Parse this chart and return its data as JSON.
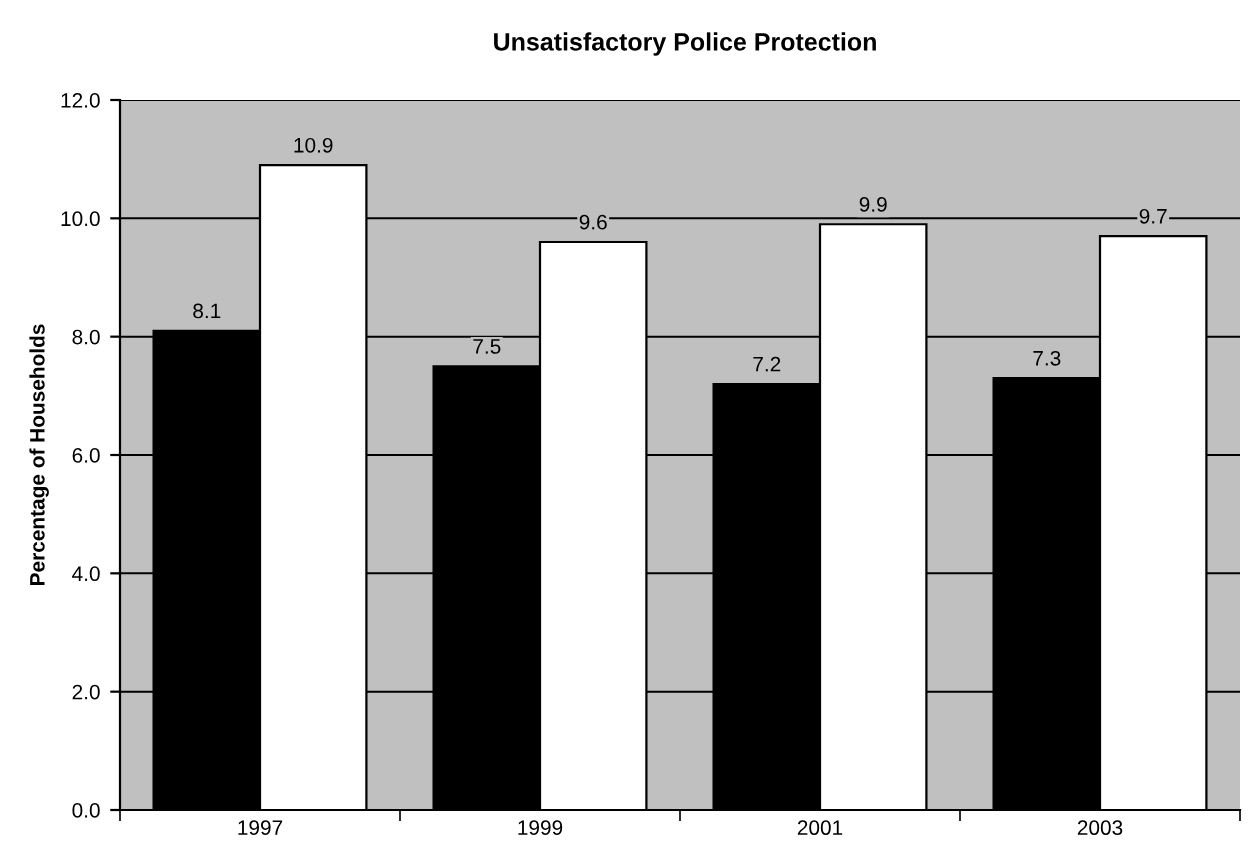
{
  "chart_data": {
    "type": "bar",
    "title": "Unsatisfactory Police Protection",
    "ylabel": "Percentage of Households",
    "categories": [
      "1997",
      "1999",
      "2001",
      "2003"
    ],
    "series": [
      {
        "color": "#000000",
        "values": [
          8.1,
          7.5,
          7.2,
          7.3
        ]
      },
      {
        "color": "#ffffff",
        "values": [
          10.9,
          9.6,
          9.9,
          9.7
        ]
      }
    ],
    "ylim": [
      0,
      12
    ],
    "yticks": [
      {
        "value": 0,
        "label": "0.0"
      },
      {
        "value": 2,
        "label": "2.0"
      },
      {
        "value": 4,
        "label": "4.0"
      },
      {
        "value": 6,
        "label": "6.0"
      },
      {
        "value": 8,
        "label": "8.0"
      },
      {
        "value": 10,
        "label": "10.0"
      },
      {
        "value": 12,
        "label": "12.0"
      }
    ],
    "grid": "y",
    "data_labels": true,
    "legend": false
  }
}
